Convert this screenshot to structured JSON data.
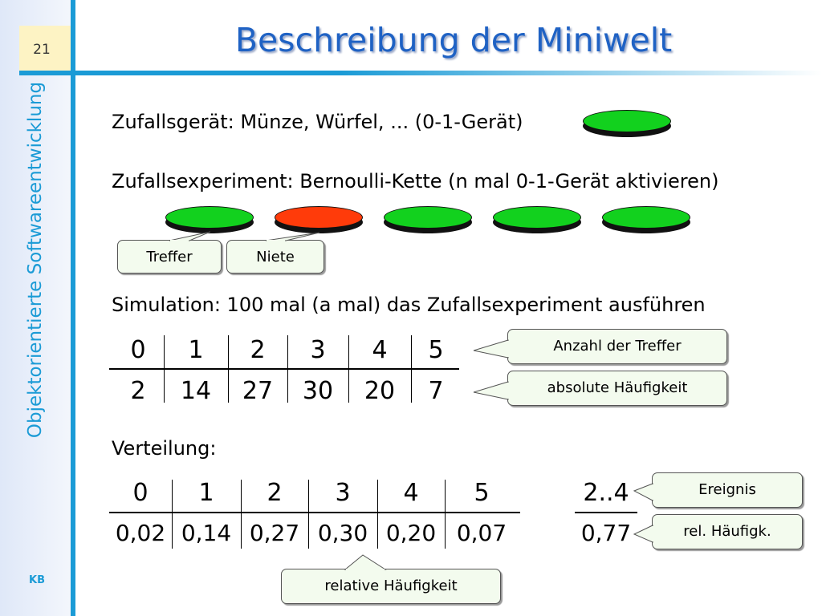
{
  "slide": {
    "page_number": "21",
    "title": "Beschreibung der Miniwelt",
    "sidebar_title": "Objektorientierte Softwareentwicklung",
    "footer_label": "KB"
  },
  "content": {
    "line1": "Zufallsgerät: Münze, Würfel, ... (0-1-Gerät)",
    "line2": "Zufallsexperiment: Bernoulli-Kette (n mal 0-1-Gerät aktivieren)",
    "line3": "Simulation: 100 mal (a mal) das Zufallsexperiment ausführen",
    "line4": "Verteilung:"
  },
  "coins": {
    "device_color": "green",
    "chain": [
      "green",
      "red",
      "green",
      "green",
      "green"
    ]
  },
  "callouts": {
    "treffer": "Treffer",
    "niete": "Niete",
    "anzahl": "Anzahl der Treffer",
    "absolute": "absolute Häufigkeit",
    "relative": "relative Häufigkeit",
    "ereignis": "Ereignis",
    "rel_kurz": "rel. Häufigk."
  },
  "table_abs": {
    "header": [
      "0",
      "1",
      "2",
      "3",
      "4",
      "5"
    ],
    "values": [
      "2",
      "14",
      "27",
      "30",
      "20",
      "7"
    ]
  },
  "table_rel": {
    "header": [
      "0",
      "1",
      "2",
      "3",
      "4",
      "5"
    ],
    "values": [
      "0,02",
      "0,14",
      "0,27",
      "0,30",
      "0,20",
      "0,07"
    ]
  },
  "table_event": {
    "header": "2..4",
    "value": "0,77"
  },
  "colors": {
    "accent": "#1b9bd6",
    "title": "#1f62c4",
    "coin_green": "#12d11e",
    "coin_red": "#ff3b0a",
    "callout_fill": "#f3fbee"
  }
}
